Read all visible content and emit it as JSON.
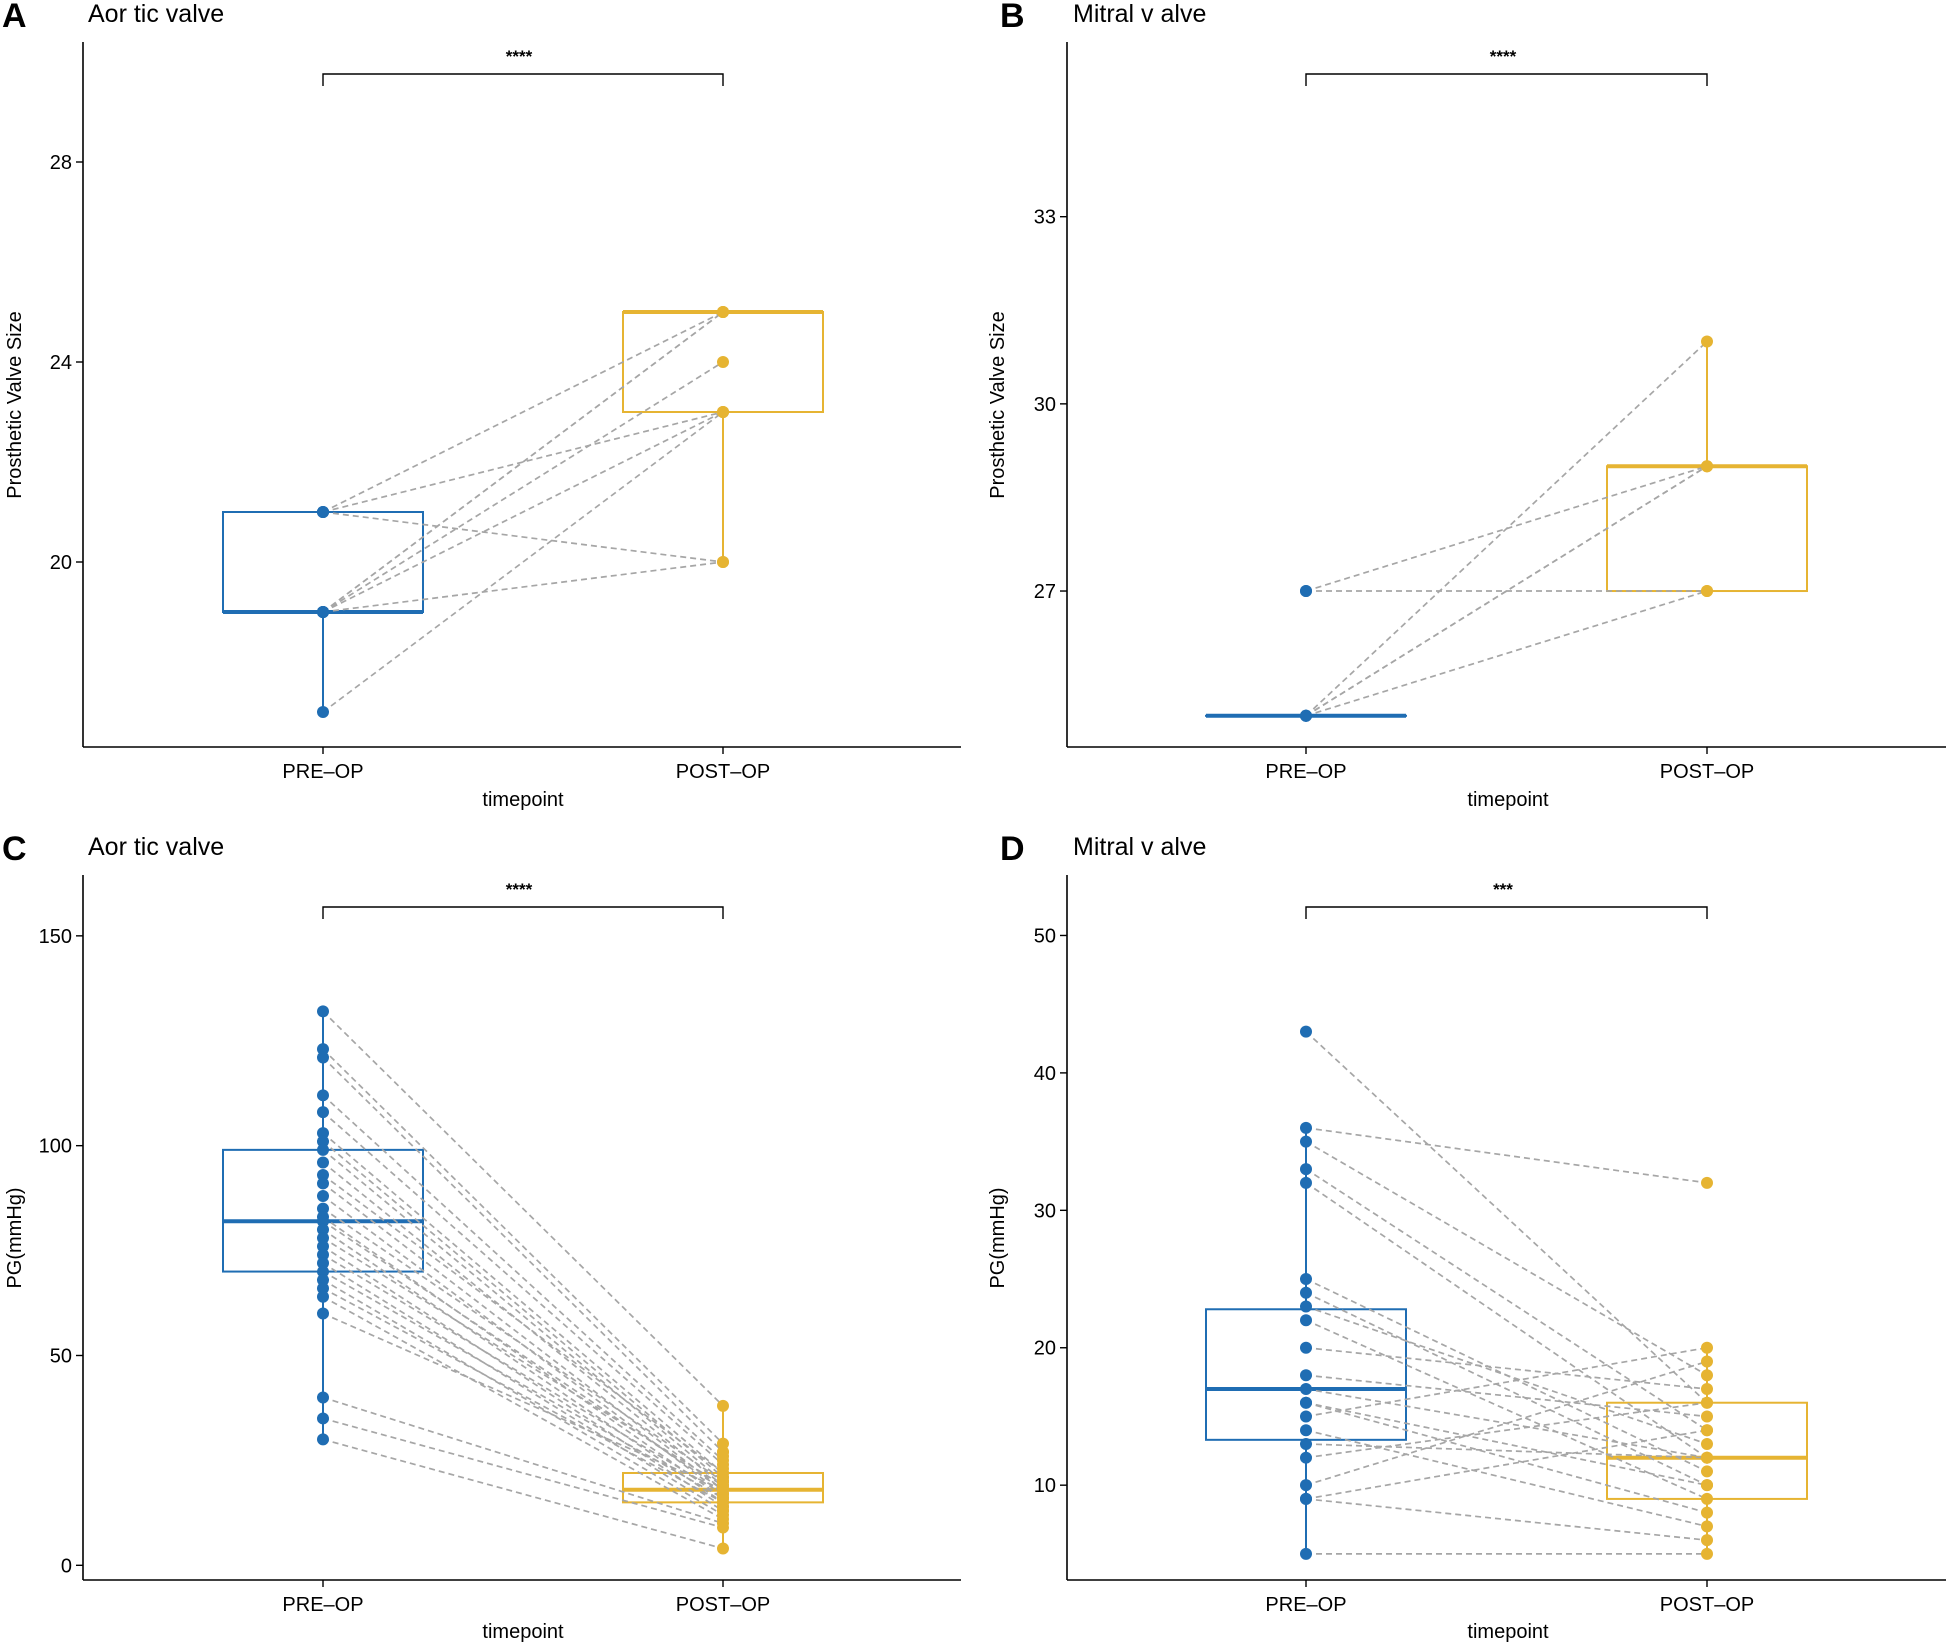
{
  "colors": {
    "pre": "#1f6db3",
    "post": "#e6b432",
    "pair_line": "#a6a6a6",
    "axis": "#000000"
  },
  "chart_data": [
    {
      "panel": "A",
      "title": "Aor tic valve",
      "type": "boxplot-paired",
      "xlabel": "timepoint",
      "ylabel": "Prosthetic Valve Size",
      "categories": [
        "PRE–OP",
        "POST–OP"
      ],
      "ylim": [
        16.3,
        30.4
      ],
      "yticks": [
        20,
        24,
        28
      ],
      "significance": "****",
      "boxes": [
        {
          "q1": 19,
          "median": 19,
          "q3": 21,
          "whisker_low": 17,
          "whisker_high": 21
        },
        {
          "q1": 23,
          "median": 25,
          "q3": 25,
          "whisker_low": 20,
          "whisker_high": 25
        }
      ],
      "pairs": [
        [
          19,
          25
        ],
        [
          19,
          24
        ],
        [
          19,
          23
        ],
        [
          19,
          20
        ],
        [
          17,
          23
        ],
        [
          21,
          25
        ],
        [
          21,
          23
        ],
        [
          21,
          20
        ],
        [
          19,
          25
        ]
      ],
      "extra_points": [
        [],
        []
      ]
    },
    {
      "panel": "B",
      "title": "Mitral v alve",
      "type": "boxplot-paired",
      "xlabel": "timepoint",
      "ylabel": "Prosthetic Valve Size",
      "categories": [
        "PRE–OP",
        "POST–OP"
      ],
      "ylim": [
        24.5,
        35.8
      ],
      "yticks": [
        27,
        30,
        33
      ],
      "significance": "****",
      "boxes": [
        {
          "q1": 25,
          "median": 25,
          "q3": 25,
          "whisker_low": 25,
          "whisker_high": 25
        },
        {
          "q1": 27,
          "median": 29,
          "q3": 29,
          "whisker_low": 27,
          "whisker_high": 31
        }
      ],
      "pairs": [
        [
          25,
          31
        ],
        [
          25,
          29
        ],
        [
          25,
          29
        ],
        [
          25,
          27
        ],
        [
          27,
          29
        ],
        [
          27,
          27
        ]
      ],
      "extra_points": [
        [],
        []
      ]
    },
    {
      "panel": "C",
      "title": "Aor tic valve",
      "type": "boxplot-paired",
      "xlabel": "timepoint",
      "ylabel": "PG(mmHg)",
      "categories": [
        "PRE–OP",
        "POST–OP"
      ],
      "ylim": [
        -3.5,
        164.5
      ],
      "yticks": [
        0,
        50,
        100,
        150
      ],
      "significance": "****",
      "boxes": [
        {
          "q1": 70,
          "median": 82,
          "q3": 99,
          "whisker_low": 30,
          "whisker_high": 132
        },
        {
          "q1": 15,
          "median": 18,
          "q3": 22,
          "whisker_low": 4,
          "whisker_high": 38
        }
      ],
      "pairs": [
        [
          132,
          38
        ],
        [
          123,
          29
        ],
        [
          121,
          27
        ],
        [
          112,
          25
        ],
        [
          108,
          24
        ],
        [
          103,
          22
        ],
        [
          101,
          21
        ],
        [
          99,
          20
        ],
        [
          96,
          19
        ],
        [
          93,
          22
        ],
        [
          91,
          18
        ],
        [
          88,
          17
        ],
        [
          85,
          20
        ],
        [
          83,
          16
        ],
        [
          82,
          18
        ],
        [
          80,
          15
        ],
        [
          78,
          19
        ],
        [
          76,
          14
        ],
        [
          74,
          17
        ],
        [
          72,
          13
        ],
        [
          70,
          16
        ],
        [
          68,
          12
        ],
        [
          66,
          15
        ],
        [
          64,
          11
        ],
        [
          60,
          18
        ],
        [
          40,
          10
        ],
        [
          35,
          9
        ],
        [
          30,
          4
        ]
      ],
      "extra_points": [
        [],
        [
          27,
          26,
          23,
          21,
          20,
          19,
          17,
          16,
          14,
          13
        ]
      ]
    },
    {
      "panel": "D",
      "title": "Mitral v alve",
      "type": "boxplot-paired",
      "xlabel": "timepoint",
      "ylabel": "PG(mmHg)",
      "categories": [
        "PRE–OP",
        "POST–OP"
      ],
      "ylim": [
        3.1,
        54.4
      ],
      "yticks": [
        10,
        20,
        30,
        40,
        50
      ],
      "significance": "***",
      "boxes": [
        {
          "q1": 13.3,
          "median": 17,
          "q3": 22.8,
          "whisker_low": 5,
          "whisker_high": 36
        },
        {
          "q1": 9,
          "median": 12,
          "q3": 16,
          "whisker_low": 5,
          "whisker_high": 20
        }
      ],
      "pairs": [
        [
          43,
          16
        ],
        [
          36,
          32
        ],
        [
          35,
          18
        ],
        [
          33,
          14
        ],
        [
          32,
          12
        ],
        [
          25,
          11
        ],
        [
          24,
          10
        ],
        [
          23,
          13
        ],
        [
          22,
          9
        ],
        [
          20,
          17
        ],
        [
          18,
          15
        ],
        [
          17,
          12
        ],
        [
          16,
          8
        ],
        [
          16,
          10
        ],
        [
          15,
          20
        ],
        [
          14,
          7
        ],
        [
          13,
          12
        ],
        [
          12,
          16
        ],
        [
          10,
          19
        ],
        [
          9,
          14
        ],
        [
          9,
          6
        ],
        [
          5,
          5
        ]
      ],
      "extra_points": [
        [],
        []
      ]
    }
  ]
}
